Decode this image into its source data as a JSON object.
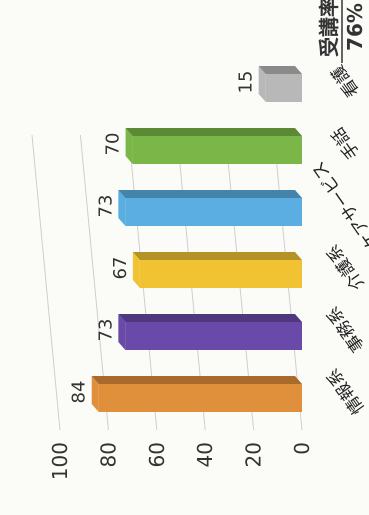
{
  "chart_data": {
    "type": "bar",
    "categories": [
      "情報系",
      "事務系",
      "介護系",
      "ケアサービス",
      "手話",
      "看護"
    ],
    "values": [
      84,
      73,
      67,
      73,
      70,
      15
    ],
    "ylim": [
      0,
      100
    ],
    "yticks": [
      "0",
      "20",
      "40",
      "60",
      "80",
      "100"
    ],
    "grid": true,
    "bar_style": "3d",
    "colors": [
      "#e08f3a",
      "#6a4aa8",
      "#f1c232",
      "#5aaee2",
      "#7ab648",
      "#b8b8b8"
    ]
  },
  "caption": {
    "label": "受講率",
    "value": "76%"
  }
}
